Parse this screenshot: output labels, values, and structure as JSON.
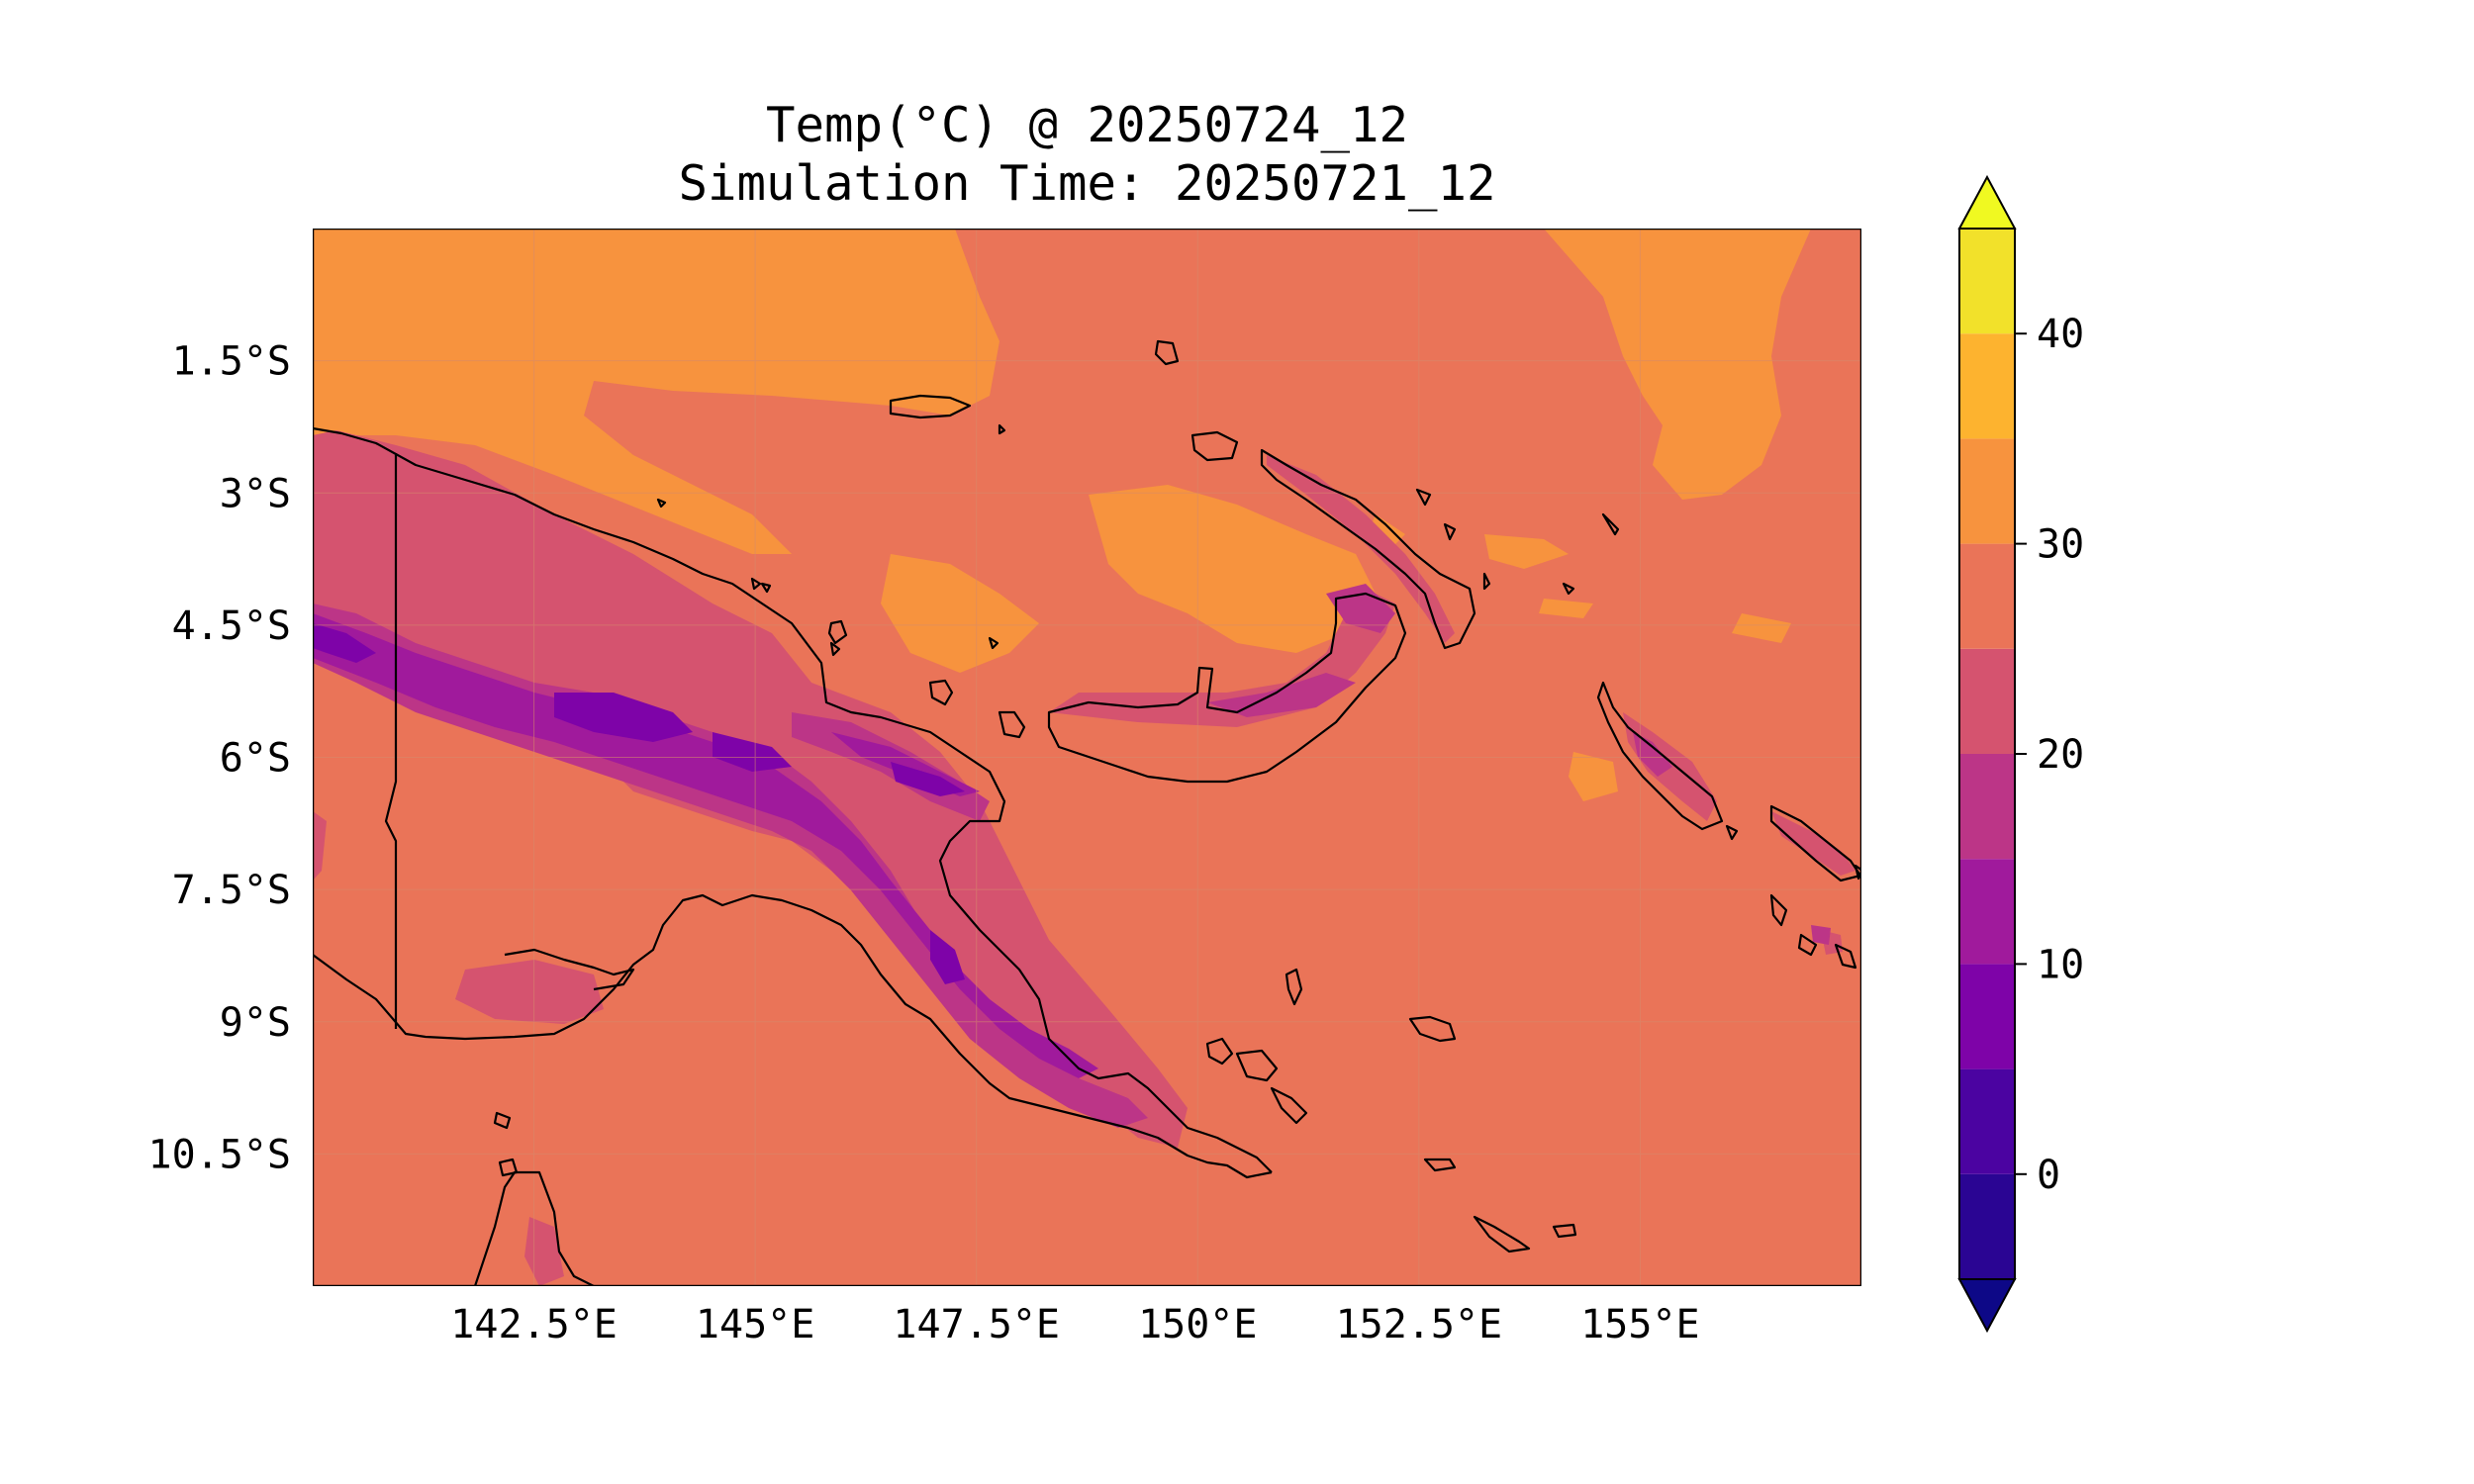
{
  "title": {
    "line1": "Temp(°C) @ 20250724_12",
    "line2": "Simulation Time: 20250721_12"
  },
  "map": {
    "type": "filled-contour",
    "variable": "Temp(°C)",
    "lon_range": [
      140.0,
      157.5
    ],
    "lat_range": [
      -12.0,
      0.0
    ],
    "lon_ticks": [
      {
        "value": 142.5,
        "label": "142.5°E"
      },
      {
        "value": 145.0,
        "label": "145°E"
      },
      {
        "value": 147.5,
        "label": "147.5°E"
      },
      {
        "value": 150.0,
        "label": "150°E"
      },
      {
        "value": 152.5,
        "label": "152.5°E"
      },
      {
        "value": 155.0,
        "label": "155°E"
      }
    ],
    "lat_ticks": [
      {
        "value": -1.5,
        "label": "1.5°S"
      },
      {
        "value": -3.0,
        "label": "3°S"
      },
      {
        "value": -4.5,
        "label": "4.5°S"
      },
      {
        "value": -6.0,
        "label": "6°S"
      },
      {
        "value": -7.5,
        "label": "7.5°S"
      },
      {
        "value": -9.0,
        "label": "9°S"
      },
      {
        "value": -10.5,
        "label": "10.5°S"
      }
    ],
    "grid": true,
    "coastlines": true
  },
  "colorbar": {
    "colormap": "plasma",
    "extend": "both",
    "levels": [
      -5,
      0,
      5,
      10,
      15,
      20,
      25,
      30,
      35,
      40,
      45
    ],
    "colors": [
      "#2a0593",
      "#4b03a1",
      "#7e03a8",
      "#a01a9c",
      "#bc3587",
      "#d5536f",
      "#ea7458",
      "#f7933e",
      "#fdb32f",
      "#f2e12a"
    ],
    "under_color": "#0d0887",
    "over_color": "#f0f921",
    "ticks": [
      {
        "value": 0,
        "label": "0"
      },
      {
        "value": 10,
        "label": "10"
      },
      {
        "value": 20,
        "label": "20"
      },
      {
        "value": 30,
        "label": "30"
      },
      {
        "value": 40,
        "label": "40"
      }
    ]
  }
}
